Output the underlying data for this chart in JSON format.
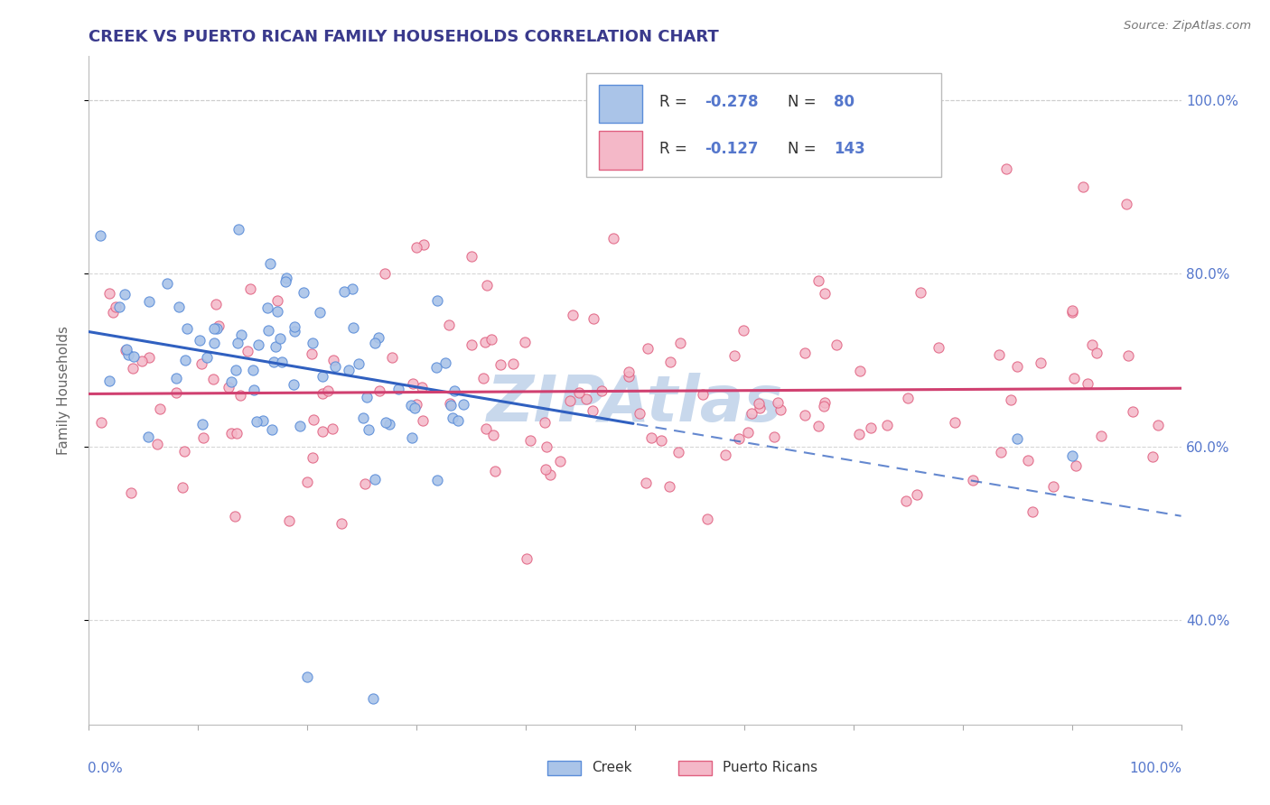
{
  "title": "CREEK VS PUERTO RICAN FAMILY HOUSEHOLDS CORRELATION CHART",
  "source_text": "Source: ZipAtlas.com",
  "ylabel": "Family Households",
  "title_color": "#3a3a8c",
  "axis_label_color": "#666666",
  "background_color": "#ffffff",
  "grid_color": "#cccccc",
  "xlim": [
    0.0,
    1.0
  ],
  "ylim": [
    0.28,
    1.05
  ],
  "creek_color": "#aac4e8",
  "creek_edge_color": "#5b8dd9",
  "pr_color": "#f4b8c8",
  "pr_edge_color": "#e06080",
  "creek_line_color": "#3060c0",
  "pr_line_color": "#d04070",
  "watermark_text": "ZIPAtlas",
  "watermark_color": "#c8d8ec",
  "right_ytick_values": [
    0.4,
    0.6,
    0.8,
    1.0
  ],
  "legend_creek_R": "-0.278",
  "legend_creek_N": "80",
  "legend_pr_R": "-0.127",
  "legend_pr_N": "143"
}
